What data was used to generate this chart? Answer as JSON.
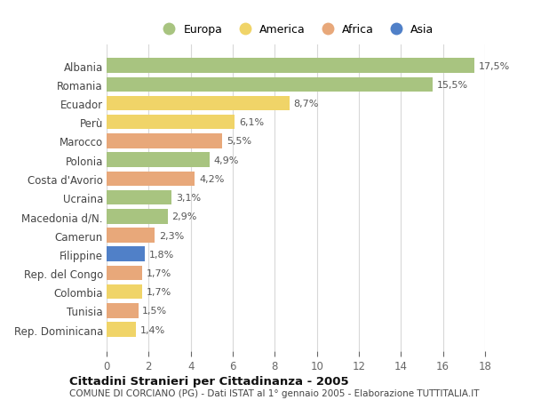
{
  "countries": [
    "Albania",
    "Romania",
    "Ecuador",
    "Perù",
    "Marocco",
    "Polonia",
    "Costa d'Avorio",
    "Ucraina",
    "Macedonia d/N.",
    "Camerun",
    "Filippine",
    "Rep. del Congo",
    "Colombia",
    "Tunisia",
    "Rep. Dominicana"
  ],
  "values": [
    17.5,
    15.5,
    8.7,
    6.1,
    5.5,
    4.9,
    4.2,
    3.1,
    2.9,
    2.3,
    1.8,
    1.7,
    1.7,
    1.5,
    1.4
  ],
  "labels": [
    "17,5%",
    "15,5%",
    "8,7%",
    "6,1%",
    "5,5%",
    "4,9%",
    "4,2%",
    "3,1%",
    "2,9%",
    "2,3%",
    "1,8%",
    "1,7%",
    "1,7%",
    "1,5%",
    "1,4%"
  ],
  "continents": [
    "Europa",
    "Europa",
    "America",
    "America",
    "Africa",
    "Europa",
    "Africa",
    "Europa",
    "Europa",
    "Africa",
    "Asia",
    "Africa",
    "America",
    "Africa",
    "America"
  ],
  "colors": {
    "Europa": "#a8c480",
    "America": "#f0d468",
    "Africa": "#e8a87a",
    "Asia": "#5080c8"
  },
  "legend_order": [
    "Europa",
    "America",
    "Africa",
    "Asia"
  ],
  "xlim": [
    0,
    18
  ],
  "xticks": [
    0,
    2,
    4,
    6,
    8,
    10,
    12,
    14,
    16,
    18
  ],
  "title": "Cittadini Stranieri per Cittadinanza - 2005",
  "subtitle": "COMUNE DI CORCIANO (PG) - Dati ISTAT al 1° gennaio 2005 - Elaborazione TUTTITALIA.IT",
  "background_color": "#ffffff",
  "grid_color": "#d8d8d8"
}
